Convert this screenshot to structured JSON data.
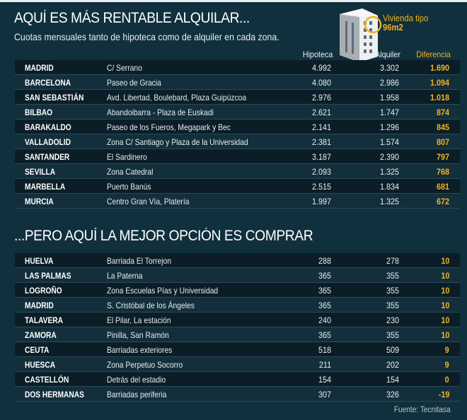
{
  "header": {
    "title": "AQUÍ ES MÁS RENTABLE ALQUILAR...",
    "subtitle": "Cuotas mensuales tanto de hipoteca como de alquiler en cada zona.",
    "callout_line1": "Vivienda tipo",
    "callout_line2": "96m2",
    "icon": "apartment-building-icon"
  },
  "columns": {
    "hipoteca": "Hipoteca",
    "alquiler": "Alquiler",
    "diferencia": "Diferencia"
  },
  "colors": {
    "background": "#10303d",
    "accent": "#f0b323"
  },
  "rent_rows": [
    {
      "city": "MADRID",
      "zone": "C/ Serrano",
      "hipoteca": "4.992",
      "alquiler": "3.302",
      "diferencia": "1.690"
    },
    {
      "city": "BARCELONA",
      "zone": "Paseo de Gracia",
      "hipoteca": "4.080",
      "alquiler": "2.986",
      "diferencia": "1.094"
    },
    {
      "city": "SAN SEBASTIÁN",
      "zone": "Avd. Libertad,  Boulebard, Plaza Guipúzcoa",
      "hipoteca": "2.976",
      "alquiler": "1.958",
      "diferencia": "1.018"
    },
    {
      "city": "BILBAO",
      "zone": "Abandoibarra - Plaza de Euskadi",
      "hipoteca": "2.621",
      "alquiler": "1.747",
      "diferencia": "874"
    },
    {
      "city": "BARAKALDO",
      "zone": "Paseo de los Fueros, Megapark y Bec",
      "hipoteca": "2.141",
      "alquiler": "1.296",
      "diferencia": "845"
    },
    {
      "city": "VALLADOLID",
      "zone": "Zona C/ Santiago y Plaza de la Universidad",
      "hipoteca": "2.381",
      "alquiler": "1.574",
      "diferencia": "807"
    },
    {
      "city": "SANTANDER",
      "zone": "El Sardinero",
      "hipoteca": "3.187",
      "alquiler": "2.390",
      "diferencia": "797"
    },
    {
      "city": "SEVILLA",
      "zone": "Zona Catedral",
      "hipoteca": "2.093",
      "alquiler": "1.325",
      "diferencia": "768"
    },
    {
      "city": "MARBELLA",
      "zone": "Puerto Banús",
      "hipoteca": "2.515",
      "alquiler": "1.834",
      "diferencia": "681"
    },
    {
      "city": "MURCIA",
      "zone": "Centro Gran Vía, Platería",
      "hipoteca": "1.997",
      "alquiler": "1.325",
      "diferencia": "672"
    }
  ],
  "buy_title": "...PERO AQUÍ LA MEJOR OPCIÓN ES COMPRAR",
  "buy_rows": [
    {
      "city": "HUELVA",
      "zone": "Barriada El Torrejon",
      "hipoteca": "288",
      "alquiler": "278",
      "diferencia": "10"
    },
    {
      "city": "LAS PALMAS",
      "zone": "La Paterna",
      "hipoteca": "365",
      "alquiler": "355",
      "diferencia": "10"
    },
    {
      "city": "LOGROÑO",
      "zone": "Zona Escuelas Pías y Universidad",
      "hipoteca": "365",
      "alquiler": "355",
      "diferencia": "10"
    },
    {
      "city": "MADRID",
      "zone": "S. Cristóbal de los Ángeles",
      "hipoteca": "365",
      "alquiler": "355",
      "diferencia": "10"
    },
    {
      "city": "TALAVERA",
      "zone": "El Pilar, La estación",
      "hipoteca": "240",
      "alquiler": "230",
      "diferencia": "10"
    },
    {
      "city": "ZAMORA",
      "zone": "Pinilla, San Ramón",
      "hipoteca": "365",
      "alquiler": "355",
      "diferencia": "10"
    },
    {
      "city": "CEUTA",
      "zone": "Barriadas exteriores",
      "hipoteca": "518",
      "alquiler": "509",
      "diferencia": "9"
    },
    {
      "city": "HUESCA",
      "zone": "Zona Perpetuo Socorro",
      "hipoteca": "211",
      "alquiler": "202",
      "diferencia": "9"
    },
    {
      "city": "CASTELLÓN",
      "zone": "Detrás del estadio",
      "hipoteca": "154",
      "alquiler": "154",
      "diferencia": "0"
    },
    {
      "city": "DOS HERMANAS",
      "zone": "Barriadas periferia",
      "hipoteca": "307",
      "alquiler": "326",
      "diferencia": "-19"
    }
  ],
  "source": "Fuente: Tecnitasa"
}
